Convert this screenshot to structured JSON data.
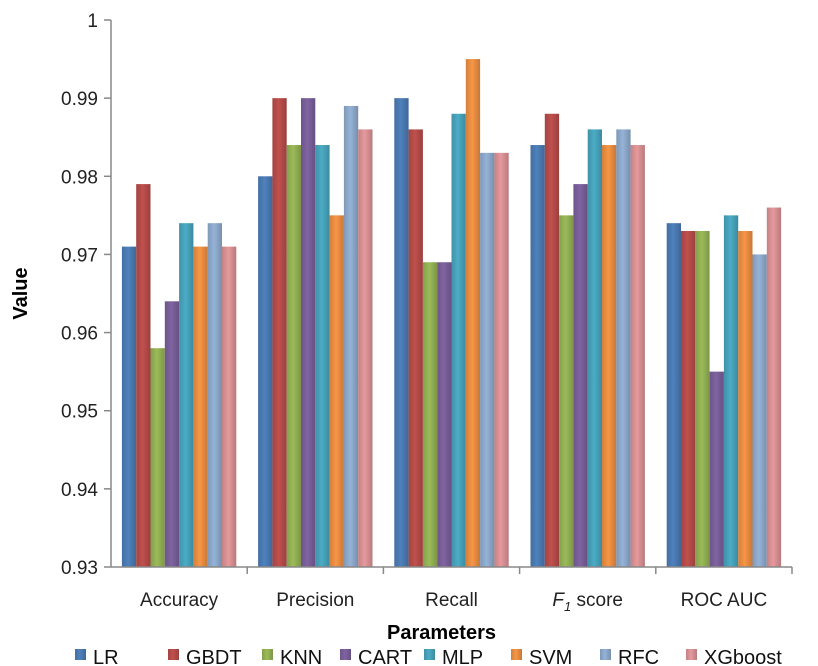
{
  "chart_data": {
    "type": "bar",
    "title": "",
    "xlabel": "Parameters",
    "ylabel": "Value",
    "ylim": [
      0.93,
      1
    ],
    "yticks": [
      "0.93",
      "0.94",
      "0.95",
      "0.96",
      "0.97",
      "0.98",
      "0.99",
      "1"
    ],
    "grid": false,
    "legend_position": "bottom",
    "categories": [
      "Accuracy",
      "Precision",
      "Recall",
      "F1 score",
      "ROC AUC"
    ],
    "series": [
      {
        "name": "LR",
        "color": "#4f81bd",
        "values": [
          0.971,
          0.98,
          0.99,
          0.984,
          0.974
        ]
      },
      {
        "name": "GBDT",
        "color": "#c0504d",
        "values": [
          0.979,
          0.99,
          0.986,
          0.988,
          0.973
        ]
      },
      {
        "name": "KNN",
        "color": "#9bbb59",
        "values": [
          0.958,
          0.984,
          0.969,
          0.975,
          0.973
        ]
      },
      {
        "name": "CART",
        "color": "#8064a2",
        "values": [
          0.964,
          0.99,
          0.969,
          0.979,
          0.955
        ]
      },
      {
        "name": "MLP",
        "color": "#4bacc6",
        "values": [
          0.974,
          0.984,
          0.988,
          0.986,
          0.975
        ]
      },
      {
        "name": "SVM",
        "color": "#f79646",
        "values": [
          0.971,
          0.975,
          0.995,
          0.984,
          0.973
        ]
      },
      {
        "name": "RFC",
        "color": "#95b3d7",
        "values": [
          0.974,
          0.989,
          0.983,
          0.986,
          0.97
        ]
      },
      {
        "name": "XGboost",
        "color": "#e6999c",
        "values": [
          0.971,
          0.986,
          0.983,
          0.984,
          0.976
        ]
      }
    ]
  }
}
